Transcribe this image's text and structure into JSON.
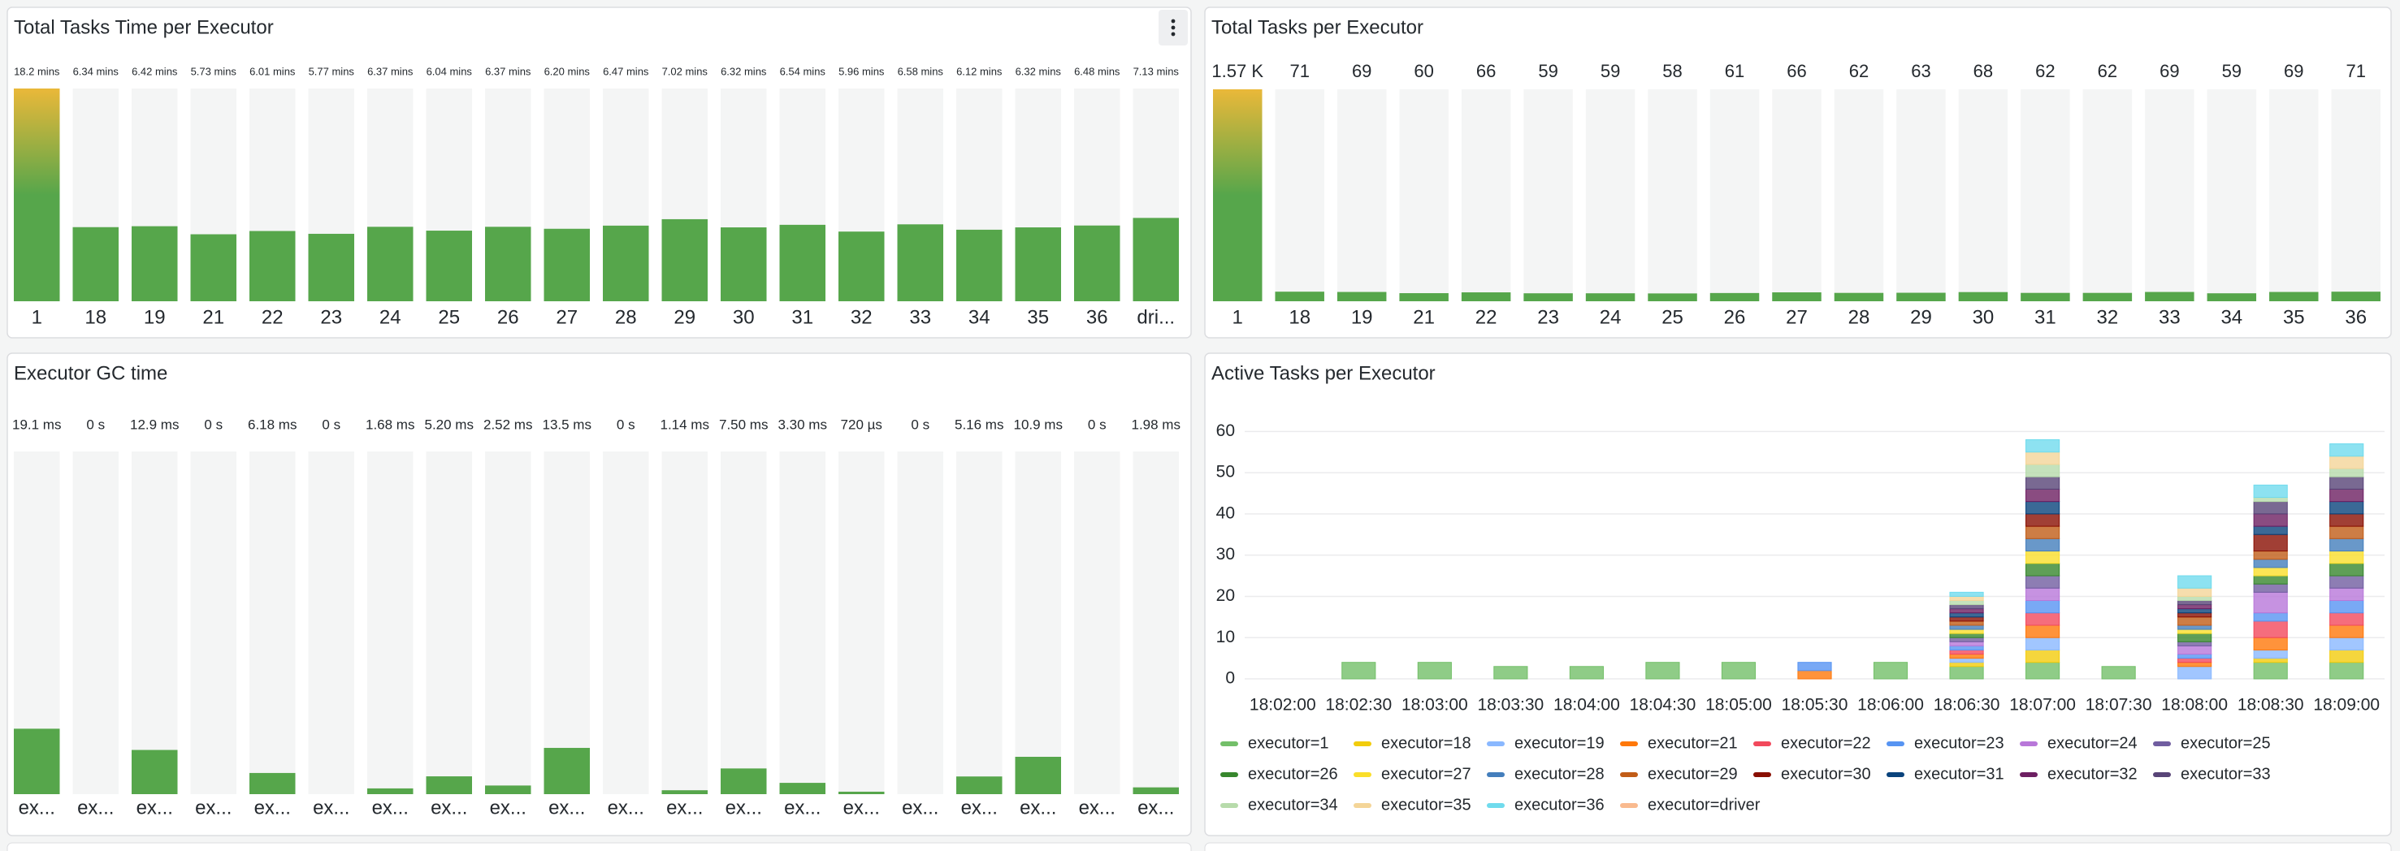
{
  "chart_data": [
    {
      "type": "bargauge",
      "title": "Total Tasks Time per Executor",
      "categories": [
        "1",
        "18",
        "19",
        "21",
        "22",
        "23",
        "24",
        "25",
        "26",
        "27",
        "28",
        "29",
        "30",
        "31",
        "32",
        "33",
        "34",
        "35",
        "36",
        "dri..."
      ],
      "values": [
        18.2,
        6.34,
        6.42,
        5.73,
        6.01,
        5.77,
        6.37,
        6.04,
        6.37,
        6.2,
        6.47,
        7.02,
        6.32,
        6.54,
        5.96,
        6.58,
        6.12,
        6.32,
        6.48,
        7.13
      ],
      "value_labels": [
        "18.2 mins",
        "6.34 mins",
        "6.42 mins",
        "5.73 mins",
        "6.01 mins",
        "5.77 mins",
        "6.37 mins",
        "6.04 mins",
        "6.37 mins",
        "6.20 mins",
        "6.47 mins",
        "7.02 mins",
        "6.32 mins",
        "6.54 mins",
        "5.96 mins",
        "6.58 mins",
        "6.12 mins",
        "6.32 mins",
        "6.48 mins",
        "7.13 mins"
      ],
      "ylim": [
        0,
        18.2
      ],
      "color": "#56a64b",
      "gradient_color": "#eab839"
    },
    {
      "type": "bargauge",
      "title": "Total Tasks per Executor",
      "categories": [
        "1",
        "18",
        "19",
        "21",
        "22",
        "23",
        "24",
        "25",
        "26",
        "27",
        "28",
        "29",
        "30",
        "31",
        "32",
        "33",
        "34",
        "35",
        "36"
      ],
      "values": [
        1570,
        71,
        69,
        60,
        66,
        59,
        59,
        58,
        61,
        66,
        62,
        63,
        68,
        62,
        62,
        69,
        59,
        69,
        71
      ],
      "value_labels": [
        "1.57 K",
        "71",
        "69",
        "60",
        "66",
        "59",
        "59",
        "58",
        "61",
        "66",
        "62",
        "63",
        "68",
        "62",
        "62",
        "69",
        "59",
        "69",
        "71"
      ],
      "ylim": [
        0,
        1570
      ],
      "color": "#56a64b",
      "gradient_color": "#eab839"
    },
    {
      "type": "bargauge",
      "title": "Executor GC time",
      "categories": [
        "ex...",
        "ex...",
        "ex...",
        "ex...",
        "ex...",
        "ex...",
        "ex...",
        "ex...",
        "ex...",
        "ex...",
        "ex...",
        "ex...",
        "ex...",
        "ex...",
        "ex...",
        "ex...",
        "ex...",
        "ex...",
        "ex...",
        "ex..."
      ],
      "values": [
        19.1,
        0,
        12.9,
        0,
        6.18,
        0,
        1.68,
        5.2,
        2.52,
        13.5,
        0,
        1.14,
        7.5,
        3.3,
        0.72,
        0,
        5.16,
        10.9,
        0,
        1.98
      ],
      "value_labels": [
        "19.1 ms",
        "0 s",
        "12.9 ms",
        "0 s",
        "6.18 ms",
        "0 s",
        "1.68 ms",
        "5.20 ms",
        "2.52 ms",
        "13.5 ms",
        "0 s",
        "1.14 ms",
        "7.50 ms",
        "3.30 ms",
        "720 µs",
        "0 s",
        "5.16 ms",
        "10.9 ms",
        "0 s",
        "1.98 ms"
      ],
      "ylim": [
        0,
        100
      ],
      "color": "#56a64b"
    },
    {
      "type": "stacked_bar",
      "title": "Active Tasks per Executor",
      "categories": [
        "18:02:00",
        "18:02:30",
        "18:03:00",
        "18:03:30",
        "18:04:00",
        "18:04:30",
        "18:05:00",
        "18:05:30",
        "18:06:00",
        "18:06:30",
        "18:07:00",
        "18:07:30",
        "18:08:00",
        "18:08:30",
        "18:09:00"
      ],
      "ylim": [
        0,
        64
      ],
      "yticks": [
        0,
        10,
        20,
        30,
        40,
        50,
        60
      ],
      "grid": true,
      "legend": "bottom",
      "series": [
        {
          "name": "executor=1",
          "color": "#73bf69",
          "values": [
            0,
            4,
            4,
            3,
            3,
            4,
            4,
            0,
            4,
            3,
            4,
            3,
            0,
            4,
            4
          ]
        },
        {
          "name": "executor=18",
          "color": "#f2cc0c",
          "values": [
            0,
            0,
            0,
            0,
            0,
            0,
            0,
            0,
            0,
            1,
            3,
            0,
            0,
            1,
            3
          ]
        },
        {
          "name": "executor=19",
          "color": "#8ab8ff",
          "values": [
            0,
            0,
            0,
            0,
            0,
            0,
            0,
            0,
            0,
            1,
            3,
            0,
            3,
            2,
            3
          ]
        },
        {
          "name": "executor=21",
          "color": "#ff780a",
          "values": [
            0,
            0,
            0,
            0,
            0,
            0,
            0,
            2,
            0,
            1,
            3,
            0,
            1,
            3,
            3
          ]
        },
        {
          "name": "executor=22",
          "color": "#f2495c",
          "values": [
            0,
            0,
            0,
            0,
            0,
            0,
            0,
            0,
            0,
            1,
            3,
            0,
            1,
            4,
            3
          ]
        },
        {
          "name": "executor=23",
          "color": "#5794f2",
          "values": [
            0,
            0,
            0,
            0,
            0,
            0,
            0,
            2,
            0,
            1,
            3,
            0,
            1,
            2,
            3
          ]
        },
        {
          "name": "executor=24",
          "color": "#b877d9",
          "values": [
            0,
            0,
            0,
            0,
            0,
            0,
            0,
            0,
            0,
            1,
            3,
            0,
            2,
            5,
            3
          ]
        },
        {
          "name": "executor=25",
          "color": "#705da0",
          "values": [
            0,
            0,
            0,
            0,
            0,
            0,
            0,
            0,
            0,
            1,
            3,
            0,
            1,
            2,
            3
          ]
        },
        {
          "name": "executor=26",
          "color": "#37872d",
          "values": [
            0,
            0,
            0,
            0,
            0,
            0,
            0,
            0,
            0,
            1,
            3,
            0,
            2,
            2,
            3
          ]
        },
        {
          "name": "executor=27",
          "color": "#fade2a",
          "values": [
            0,
            0,
            0,
            0,
            0,
            0,
            0,
            0,
            0,
            1,
            3,
            0,
            1,
            2,
            3
          ]
        },
        {
          "name": "executor=28",
          "color": "#447ebc",
          "values": [
            0,
            0,
            0,
            0,
            0,
            0,
            0,
            0,
            0,
            1,
            3,
            0,
            1,
            2,
            3
          ]
        },
        {
          "name": "executor=29",
          "color": "#c15c17",
          "values": [
            0,
            0,
            0,
            0,
            0,
            0,
            0,
            0,
            0,
            1,
            3,
            0,
            2,
            2,
            3
          ]
        },
        {
          "name": "executor=30",
          "color": "#890f02",
          "values": [
            0,
            0,
            0,
            0,
            0,
            0,
            0,
            0,
            0,
            1,
            3,
            0,
            1,
            4,
            3
          ]
        },
        {
          "name": "executor=31",
          "color": "#0a437c",
          "values": [
            0,
            0,
            0,
            0,
            0,
            0,
            0,
            0,
            0,
            1,
            3,
            0,
            1,
            2,
            3
          ]
        },
        {
          "name": "executor=32",
          "color": "#6d1f62",
          "values": [
            0,
            0,
            0,
            0,
            0,
            0,
            0,
            0,
            0,
            1,
            3,
            0,
            1,
            3,
            3
          ]
        },
        {
          "name": "executor=33",
          "color": "#584477",
          "values": [
            0,
            0,
            0,
            0,
            0,
            0,
            0,
            0,
            0,
            1,
            3,
            0,
            1,
            3,
            3
          ]
        },
        {
          "name": "executor=34",
          "color": "#b7dbab",
          "values": [
            0,
            0,
            0,
            0,
            0,
            0,
            0,
            0,
            0,
            1,
            3,
            0,
            1,
            1,
            2
          ]
        },
        {
          "name": "executor=35",
          "color": "#f4d598",
          "values": [
            0,
            0,
            0,
            0,
            0,
            0,
            0,
            0,
            0,
            1,
            3,
            0,
            2,
            0,
            3
          ]
        },
        {
          "name": "executor=36",
          "color": "#70dbed",
          "values": [
            0,
            0,
            0,
            0,
            0,
            0,
            0,
            0,
            0,
            1,
            3,
            0,
            3,
            3,
            3
          ]
        },
        {
          "name": "executor=driver",
          "color": "#f9ba8f",
          "values": [
            0,
            0,
            0,
            0,
            0,
            0,
            0,
            0,
            0,
            0,
            0,
            0,
            0,
            0,
            0
          ]
        }
      ]
    }
  ]
}
